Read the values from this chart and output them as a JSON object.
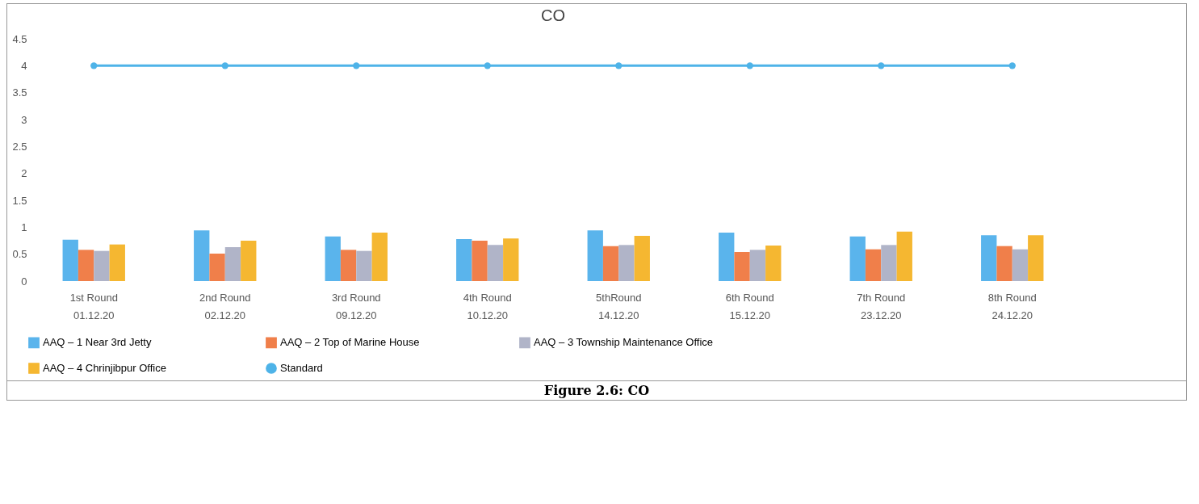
{
  "chart_data": {
    "type": "bar",
    "title": "CO",
    "categories": [
      "1st Round\n01.12.20",
      "2nd Round\n02.12.20",
      "3rd Round\n09.12.20",
      "4th Round\n10.12.20",
      "5thRound\n14.12.20",
      "6th Round\n15.12.20",
      "7th Round\n23.12.20",
      "8th Round\n24.12.20"
    ],
    "series": [
      {
        "name": "AAQ – 1 Near 3rd Jetty",
        "color": "#5ab4ec",
        "values": [
          0.77,
          0.94,
          0.83,
          0.78,
          0.94,
          0.9,
          0.83,
          0.85
        ]
      },
      {
        "name": "AAQ – 2 Top of Marine House",
        "color": "#f07f4a",
        "values": [
          0.58,
          0.51,
          0.58,
          0.75,
          0.65,
          0.54,
          0.59,
          0.65
        ]
      },
      {
        "name": "AAQ – 3 Township Maintenance Office",
        "color": "#b0b4c8",
        "values": [
          0.56,
          0.63,
          0.56,
          0.67,
          0.67,
          0.58,
          0.67,
          0.59
        ]
      },
      {
        "name": "AAQ – 4 Chrinjibpur Office",
        "color": "#f5b731",
        "values": [
          0.68,
          0.75,
          0.9,
          0.79,
          0.84,
          0.66,
          0.92,
          0.85
        ]
      },
      {
        "name": "Standard",
        "type": "line",
        "color": "#4eb3e8",
        "values": [
          4,
          4,
          4,
          4,
          4,
          4,
          4,
          4
        ]
      }
    ],
    "ylim": [
      0,
      4.5
    ],
    "yticks": [
      0,
      0.5,
      1,
      1.5,
      2,
      2.5,
      3,
      3.5,
      4,
      4.5
    ],
    "grid": false,
    "legend": "bottom",
    "marker": "circle",
    "annotations": [
      "Figure 2.6: CO"
    ]
  }
}
